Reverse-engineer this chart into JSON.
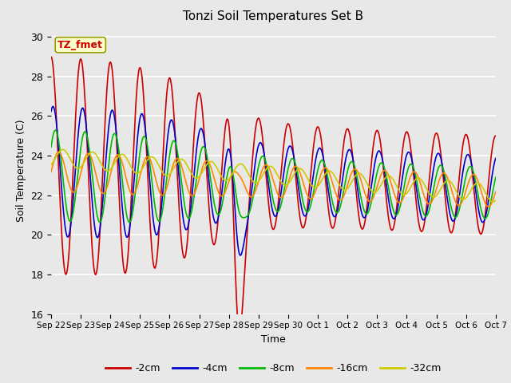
{
  "title": "Tonzi Soil Temperatures Set B",
  "xlabel": "Time",
  "ylabel": "Soil Temperature (C)",
  "ylim": [
    16,
    30.5
  ],
  "yticks": [
    16,
    18,
    20,
    22,
    24,
    26,
    28,
    30
  ],
  "background_color": "#e8e8e8",
  "series": [
    {
      "label": "-2cm",
      "color": "#cc0000",
      "linewidth": 1.2
    },
    {
      "label": "-4cm",
      "color": "#0000cc",
      "linewidth": 1.2
    },
    {
      "label": "-8cm",
      "color": "#00bb00",
      "linewidth": 1.2
    },
    {
      "label": "-16cm",
      "color": "#ff8800",
      "linewidth": 1.2
    },
    {
      "label": "-32cm",
      "color": "#cccc00",
      "linewidth": 1.2
    }
  ],
  "annotation_label": "TZ_fmet",
  "annotation_color": "#cc0000",
  "annotation_bg": "#ffffcc",
  "annotation_border": "#999900",
  "x_tick_labels": [
    "Sep 22",
    "Sep 23",
    "Sep 24",
    "Sep 25",
    "Sep 26",
    "Sep 27",
    "Sep 28",
    "Sep 29",
    "Sep 30",
    "Oct 1",
    "Oct 2",
    "Oct 3",
    "Oct 4",
    "Oct 5",
    "Oct 6",
    "Oct 7"
  ]
}
